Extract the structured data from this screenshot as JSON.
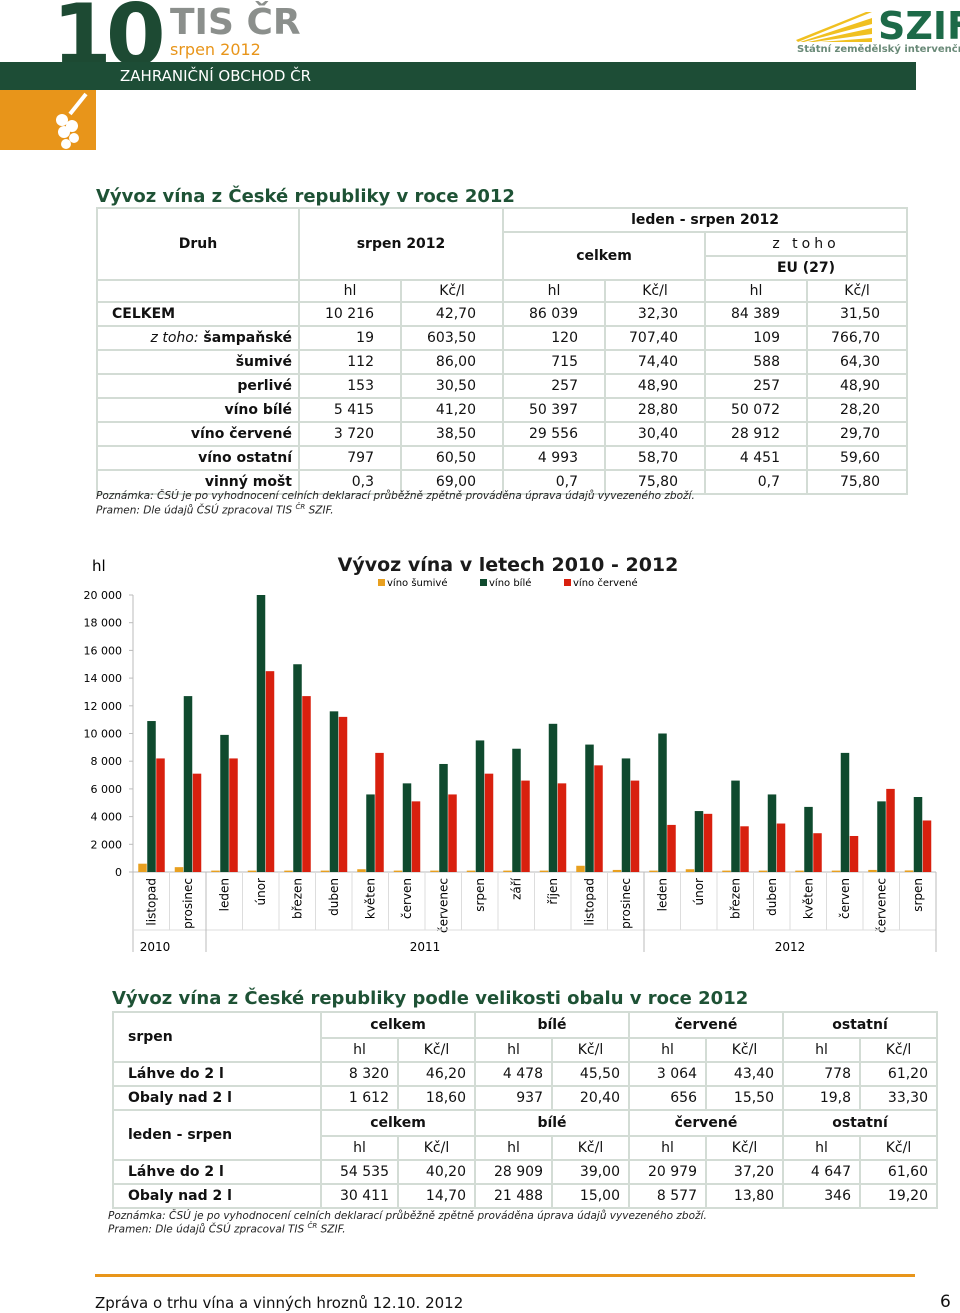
{
  "header": {
    "number": "10",
    "brand": "TIS",
    "brand_suffix": "ČR",
    "period": "srpen 2012",
    "section": "ZAHRANIČNÍ OBCHOD ČR",
    "logo": "SZIF",
    "logo_text": "Státní zemědělský intervenční fond"
  },
  "table1": {
    "title": "Vývoz vína z České republiky v roce 2012",
    "col_label": "Druh",
    "h_month": "srpen 2012",
    "h_period": "leden - srpen 2012",
    "h_total": "celkem",
    "h_of_which": "z toho",
    "h_eu": "EU (27)",
    "units": [
      "hl",
      "Kč/l",
      "hl",
      "Kč/l",
      "hl",
      "Kč/l"
    ],
    "row_prefix": "z toho:",
    "rows": [
      [
        "CELKEM",
        "10 216",
        "42,70",
        "86 039",
        "32,30",
        "84 389",
        "31,50"
      ],
      [
        "šampaňské",
        "19",
        "603,50",
        "120",
        "707,40",
        "109",
        "766,70"
      ],
      [
        "šumivé",
        "112",
        "86,00",
        "715",
        "74,40",
        "588",
        "64,30"
      ],
      [
        "perlivé",
        "153",
        "30,50",
        "257",
        "48,90",
        "257",
        "48,90"
      ],
      [
        "víno bílé",
        "5 415",
        "41,20",
        "50 397",
        "28,80",
        "50 072",
        "28,20"
      ],
      [
        "víno červené",
        "3 720",
        "38,50",
        "29 556",
        "30,40",
        "28 912",
        "29,70"
      ],
      [
        "víno ostatní",
        "797",
        "60,50",
        "4 993",
        "58,70",
        "4 451",
        "59,60"
      ],
      [
        "vinný mošt",
        "0,3",
        "69,00",
        "0,7",
        "75,80",
        "0,7",
        "75,80"
      ]
    ],
    "note": "Poznámka: ČSÚ je po vyhodnocení celních deklarací průběžně zpětně prováděna úprava údajů vyvezeného zboží.",
    "source": "Pramen: Dle údajů ČSÚ zpracoval TIS",
    "source_sup": "ČR",
    "source_end": "SZIF."
  },
  "chart_data": {
    "type": "bar",
    "title": "Vývoz vína v letech 2010 - 2012",
    "y_label": "hl",
    "categories": [
      "listopad",
      "prosinec",
      "leden",
      "únor",
      "březen",
      "duben",
      "květen",
      "červen",
      "červenec",
      "srpen",
      "září",
      "říjen",
      "listopad",
      "prosinec",
      "leden",
      "únor",
      "březen",
      "duben",
      "květen",
      "červen",
      "červenec",
      "srpen"
    ],
    "x_groups": [
      {
        "label": "2010",
        "count": 2
      },
      {
        "label": "2011",
        "count": 12
      },
      {
        "label": "2012",
        "count": 8
      }
    ],
    "series": [
      {
        "name": "víno šumivé",
        "color": "#e8a020",
        "values": [
          600,
          350,
          100,
          100,
          100,
          100,
          200,
          100,
          100,
          100,
          100,
          100,
          450,
          150,
          100,
          200,
          100,
          100,
          100,
          100,
          150,
          112
        ]
      },
      {
        "name": "víno bílé",
        "color": "#0f4a2e",
        "values": [
          10900,
          12700,
          9900,
          20000,
          15000,
          11600,
          5600,
          6400,
          7800,
          9500,
          8900,
          10700,
          9200,
          8200,
          10000,
          4400,
          6600,
          5600,
          4700,
          8600,
          5100,
          5415
        ]
      },
      {
        "name": "víno červené",
        "color": "#d8200e",
        "values": [
          8200,
          7100,
          8200,
          14500,
          12700,
          11200,
          8600,
          5100,
          5600,
          7100,
          6600,
          6400,
          7700,
          6600,
          3400,
          4200,
          3300,
          3500,
          2800,
          2600,
          6000,
          3720
        ]
      }
    ],
    "ylim": [
      0,
      20000
    ],
    "yticks": [
      0,
      {
        "value": 2000,
        "label": "2 000"
      },
      {
        "value": 4000,
        "label": "4 000"
      },
      {
        "value": 6000,
        "label": "6 000"
      },
      {
        "value": 8000,
        "label": "8 000"
      },
      {
        "value": 10000,
        "label": "10 000"
      },
      {
        "value": 12000,
        "label": "12 000"
      },
      {
        "value": 14000,
        "label": "14 000"
      },
      {
        "value": 16000,
        "label": "16 000"
      },
      {
        "value": 18000,
        "label": "18 000"
      },
      {
        "value": 20000,
        "label": "20 000"
      }
    ]
  },
  "table2": {
    "title": "Vývoz vína z České republiky podle velikosti obalu v roce 2012",
    "sections": [
      {
        "label": "srpen",
        "groups": [
          "celkem",
          "bílé",
          "červené",
          "ostatní"
        ],
        "units": [
          "hl",
          "Kč/l",
          "hl",
          "Kč/l",
          "hl",
          "Kč/l",
          "hl",
          "Kč/l"
        ],
        "rows": [
          [
            "Láhve do 2 l",
            "8 320",
            "46,20",
            "4 478",
            "45,50",
            "3 064",
            "43,40",
            "778",
            "61,20"
          ],
          [
            "Obaly nad 2 l",
            "1 612",
            "18,60",
            "937",
            "20,40",
            "656",
            "15,50",
            "19,8",
            "33,30"
          ]
        ]
      },
      {
        "label": "leden - srpen",
        "groups": [
          "celkem",
          "bílé",
          "červené",
          "ostatní"
        ],
        "units": [
          "hl",
          "Kč/l",
          "hl",
          "Kč/l",
          "hl",
          "Kč/l",
          "hl",
          "Kč/l"
        ],
        "rows": [
          [
            "Láhve do 2 l",
            "54 535",
            "40,20",
            "28 909",
            "39,00",
            "20 979",
            "37,20",
            "4 647",
            "61,60"
          ],
          [
            "Obaly nad 2 l",
            "30 411",
            "14,70",
            "21 488",
            "15,00",
            "8 577",
            "13,80",
            "346",
            "19,20"
          ]
        ]
      }
    ],
    "note": "Poznámka: ČSÚ je po vyhodnocení celních deklarací průběžně zpětně prováděna úprava údajů vyvezeného zboží.",
    "source": "Pramen: Dle údajů ČSÚ zpracoval TIS",
    "source_sup": "ČR",
    "source_end": "SZIF."
  },
  "footer": {
    "text": "Zpráva o trhu vína a vinných hroznů 12.10. 2012",
    "page": "6"
  }
}
